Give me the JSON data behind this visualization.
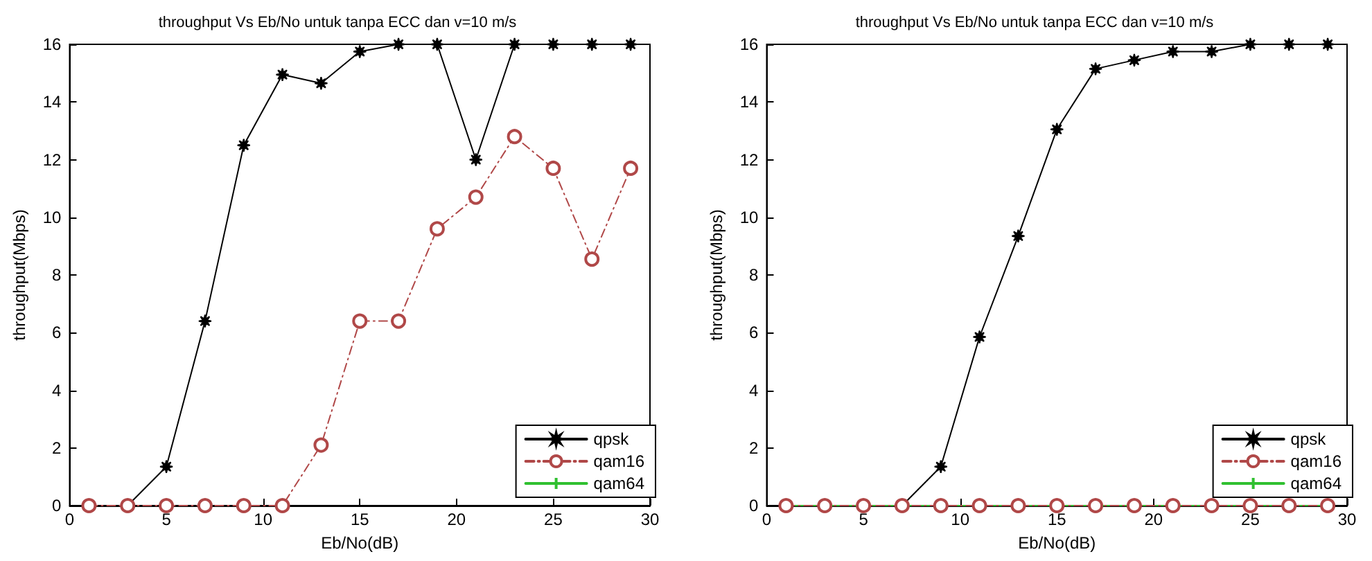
{
  "chart_data": [
    {
      "type": "line",
      "title": "throughput Vs Eb/No untuk tanpa ECC dan v=10 m/s",
      "xlabel": "Eb/No(dB)",
      "ylabel": "throughput(Mbps)",
      "x": [
        1,
        3,
        5,
        7,
        9,
        11,
        13,
        15,
        17,
        19,
        21,
        23,
        25,
        27,
        29
      ],
      "xlim": [
        0,
        30
      ],
      "xticks": [
        0,
        5,
        10,
        15,
        20,
        25,
        30
      ],
      "ylim": [
        0,
        16
      ],
      "yticks": [
        0,
        2,
        4,
        6,
        8,
        10,
        12,
        14,
        16
      ],
      "grid": false,
      "legend": "bottom right",
      "series": [
        {
          "name": "qpsk",
          "color": "#000000",
          "marker": "star",
          "line_style": "solid",
          "values": [
            0,
            0,
            1.35,
            6.4,
            12.5,
            14.95,
            14.65,
            15.75,
            16,
            16,
            12,
            16,
            16,
            16,
            16
          ]
        },
        {
          "name": "qam16",
          "color": "#b04848",
          "marker": "circle",
          "line_style": "dashed",
          "values": [
            0,
            0,
            0,
            0,
            0,
            0,
            2.1,
            6.4,
            6.4,
            9.6,
            10.7,
            12.8,
            11.7,
            8.55,
            11.7
          ]
        },
        {
          "name": "qam64",
          "color": "#30c030",
          "marker": "cross",
          "line_style": "solid",
          "values": [
            null,
            null,
            null,
            null,
            null,
            null,
            null,
            null,
            null,
            null,
            null,
            null,
            null,
            null,
            null
          ]
        }
      ]
    },
    {
      "type": "line",
      "title": "throughput Vs Eb/No untuk tanpa ECC dan v=10 m/s",
      "xlabel": "Eb/No(dB)",
      "ylabel": "throughput(Mbps)",
      "x": [
        1,
        3,
        5,
        7,
        9,
        11,
        13,
        15,
        17,
        19,
        21,
        23,
        25,
        27,
        29
      ],
      "xlim": [
        0,
        30
      ],
      "xticks": [
        0,
        5,
        10,
        15,
        20,
        25,
        30
      ],
      "ylim": [
        0,
        16
      ],
      "yticks": [
        0,
        2,
        4,
        6,
        8,
        10,
        12,
        14,
        16
      ],
      "grid": false,
      "legend": "bottom right",
      "series": [
        {
          "name": "qpsk",
          "color": "#000000",
          "marker": "star",
          "line_style": "solid",
          "values": [
            0,
            0,
            0,
            0,
            1.35,
            5.85,
            9.35,
            13.05,
            15.15,
            15.45,
            15.75,
            15.75,
            16,
            16,
            16
          ]
        },
        {
          "name": "qam16",
          "color": "#b04848",
          "marker": "circle",
          "line_style": "dashed",
          "values": [
            0,
            0,
            0,
            0,
            0,
            0,
            0,
            0,
            0,
            0,
            0,
            0,
            0,
            0,
            0
          ]
        },
        {
          "name": "qam64",
          "color": "#30c030",
          "marker": "cross",
          "line_style": "solid",
          "values": [
            0,
            0,
            0,
            0,
            0,
            0,
            0,
            0,
            0,
            0,
            0,
            0,
            0,
            0,
            0
          ]
        }
      ]
    }
  ]
}
